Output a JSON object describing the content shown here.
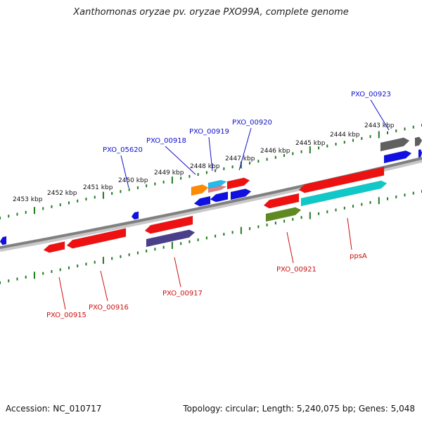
{
  "title": "Xanthomonas oryzae pv. oryzae PXO99A, complete genome",
  "accession": "Accession: NC_010717",
  "summary": "Topology: circular; Length: 5,240,075 bp; Genes: 5,048",
  "colors": {
    "backbone": "#8a8a8a",
    "tick": "#1f7a1f",
    "label_top": "#1010cc",
    "label_bottom": "#cc1010",
    "red": "#ee1111",
    "blue": "#1010e0",
    "gray": "#606060",
    "cyan": "#10c8c8",
    "olive": "#5f8a22",
    "purple": "#4a3f8a",
    "orange": "#ff8a00",
    "pink": "#e08080",
    "skyblue": "#22bbee"
  },
  "ticks": [
    {
      "label": "2453 kbp"
    },
    {
      "label": "2452 kbp"
    },
    {
      "label": "2451 kbp"
    },
    {
      "label": "2450 kbp"
    },
    {
      "label": "2449 kbp"
    },
    {
      "label": "2448 kbp"
    },
    {
      "label": "2447 kbp"
    },
    {
      "label": "2446 kbp"
    },
    {
      "label": "2445 kbp"
    },
    {
      "label": "2444 kbp"
    },
    {
      "label": "2443 kbp"
    }
  ],
  "gene_labels_top": [
    {
      "name": "PXO_05620"
    },
    {
      "name": "PXO_00918"
    },
    {
      "name": "PXO_00919"
    },
    {
      "name": "PXO_00920"
    },
    {
      "name": "PXO_00923"
    }
  ],
  "gene_labels_bottom": [
    {
      "name": "PXO_00915"
    },
    {
      "name": "PXO_00916"
    },
    {
      "name": "PXO_00917"
    },
    {
      "name": "PXO_00921"
    },
    {
      "name": "ppsA"
    }
  ]
}
